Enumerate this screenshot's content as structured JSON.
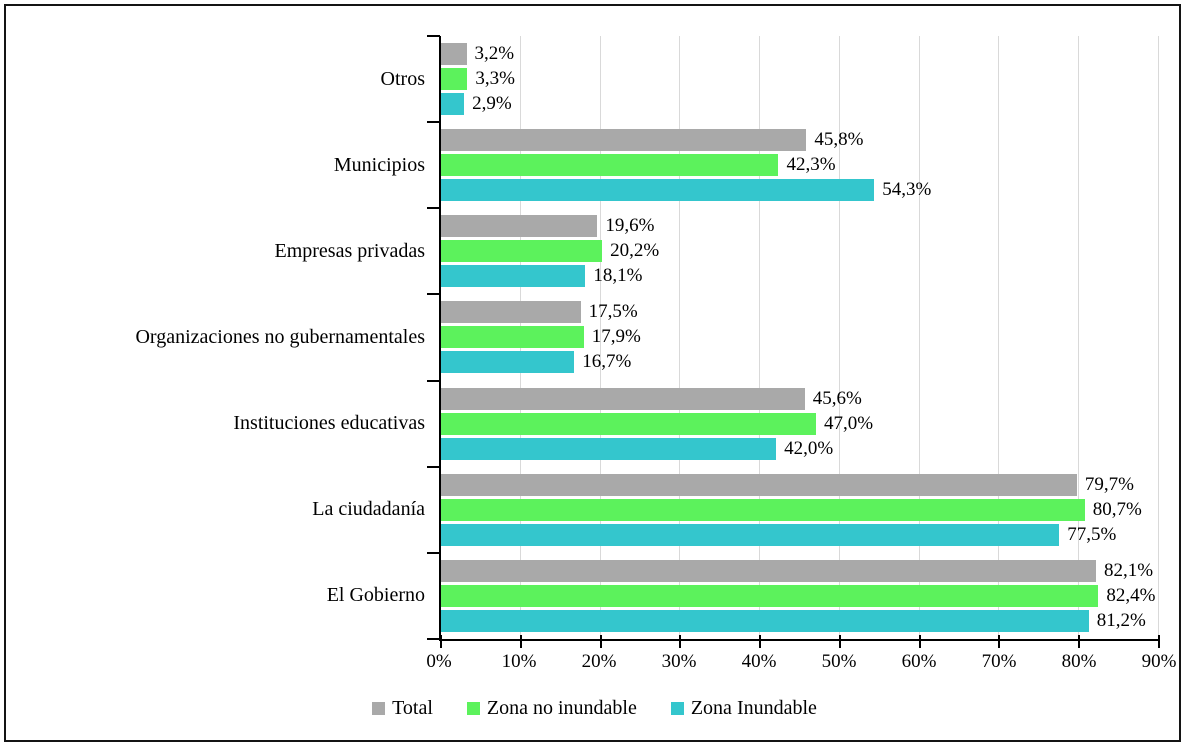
{
  "chart_data": {
    "type": "bar",
    "orientation": "horizontal",
    "title": "",
    "xlabel": "",
    "ylabel": "",
    "xlim": [
      0,
      90
    ],
    "grid": true,
    "legend_position": "bottom",
    "categories": [
      "Otros",
      "Municipios",
      "Empresas privadas",
      "Organizaciones no gubernamentales",
      "Instituciones educativas",
      "La ciudadanía",
      "El Gobierno"
    ],
    "series": [
      {
        "name": "Total",
        "color": "#a9a9a9",
        "values": [
          3.2,
          45.8,
          19.6,
          17.5,
          45.6,
          79.7,
          82.1
        ],
        "labels": [
          "3,2%",
          "45,8%",
          "19,6%",
          "17,5%",
          "45,6%",
          "79,7%",
          "82,1%"
        ]
      },
      {
        "name": "Zona no inundable",
        "color": "#5cf25c",
        "values": [
          3.3,
          42.3,
          20.2,
          17.9,
          47.0,
          80.7,
          82.4
        ],
        "labels": [
          "3,3%",
          "42,3%",
          "20,2%",
          "17,9%",
          "47,0%",
          "80,7%",
          "82,4%"
        ]
      },
      {
        "name": "Zona Inundable",
        "color": "#34c6cd",
        "values": [
          2.9,
          54.3,
          18.1,
          16.7,
          42.0,
          77.5,
          81.2
        ],
        "labels": [
          "2,9%",
          "54,3%",
          "18,1%",
          "16,7%",
          "42,0%",
          "77,5%",
          "81,2%"
        ]
      }
    ],
    "x_ticks": [
      "0%",
      "10%",
      "20%",
      "30%",
      "40%",
      "50%",
      "60%",
      "70%",
      "80%",
      "90%"
    ],
    "colors": {
      "gridline": "#d9d9d9",
      "axis": "#000000",
      "frame_border": "#141414",
      "background": "#ffffff"
    }
  }
}
